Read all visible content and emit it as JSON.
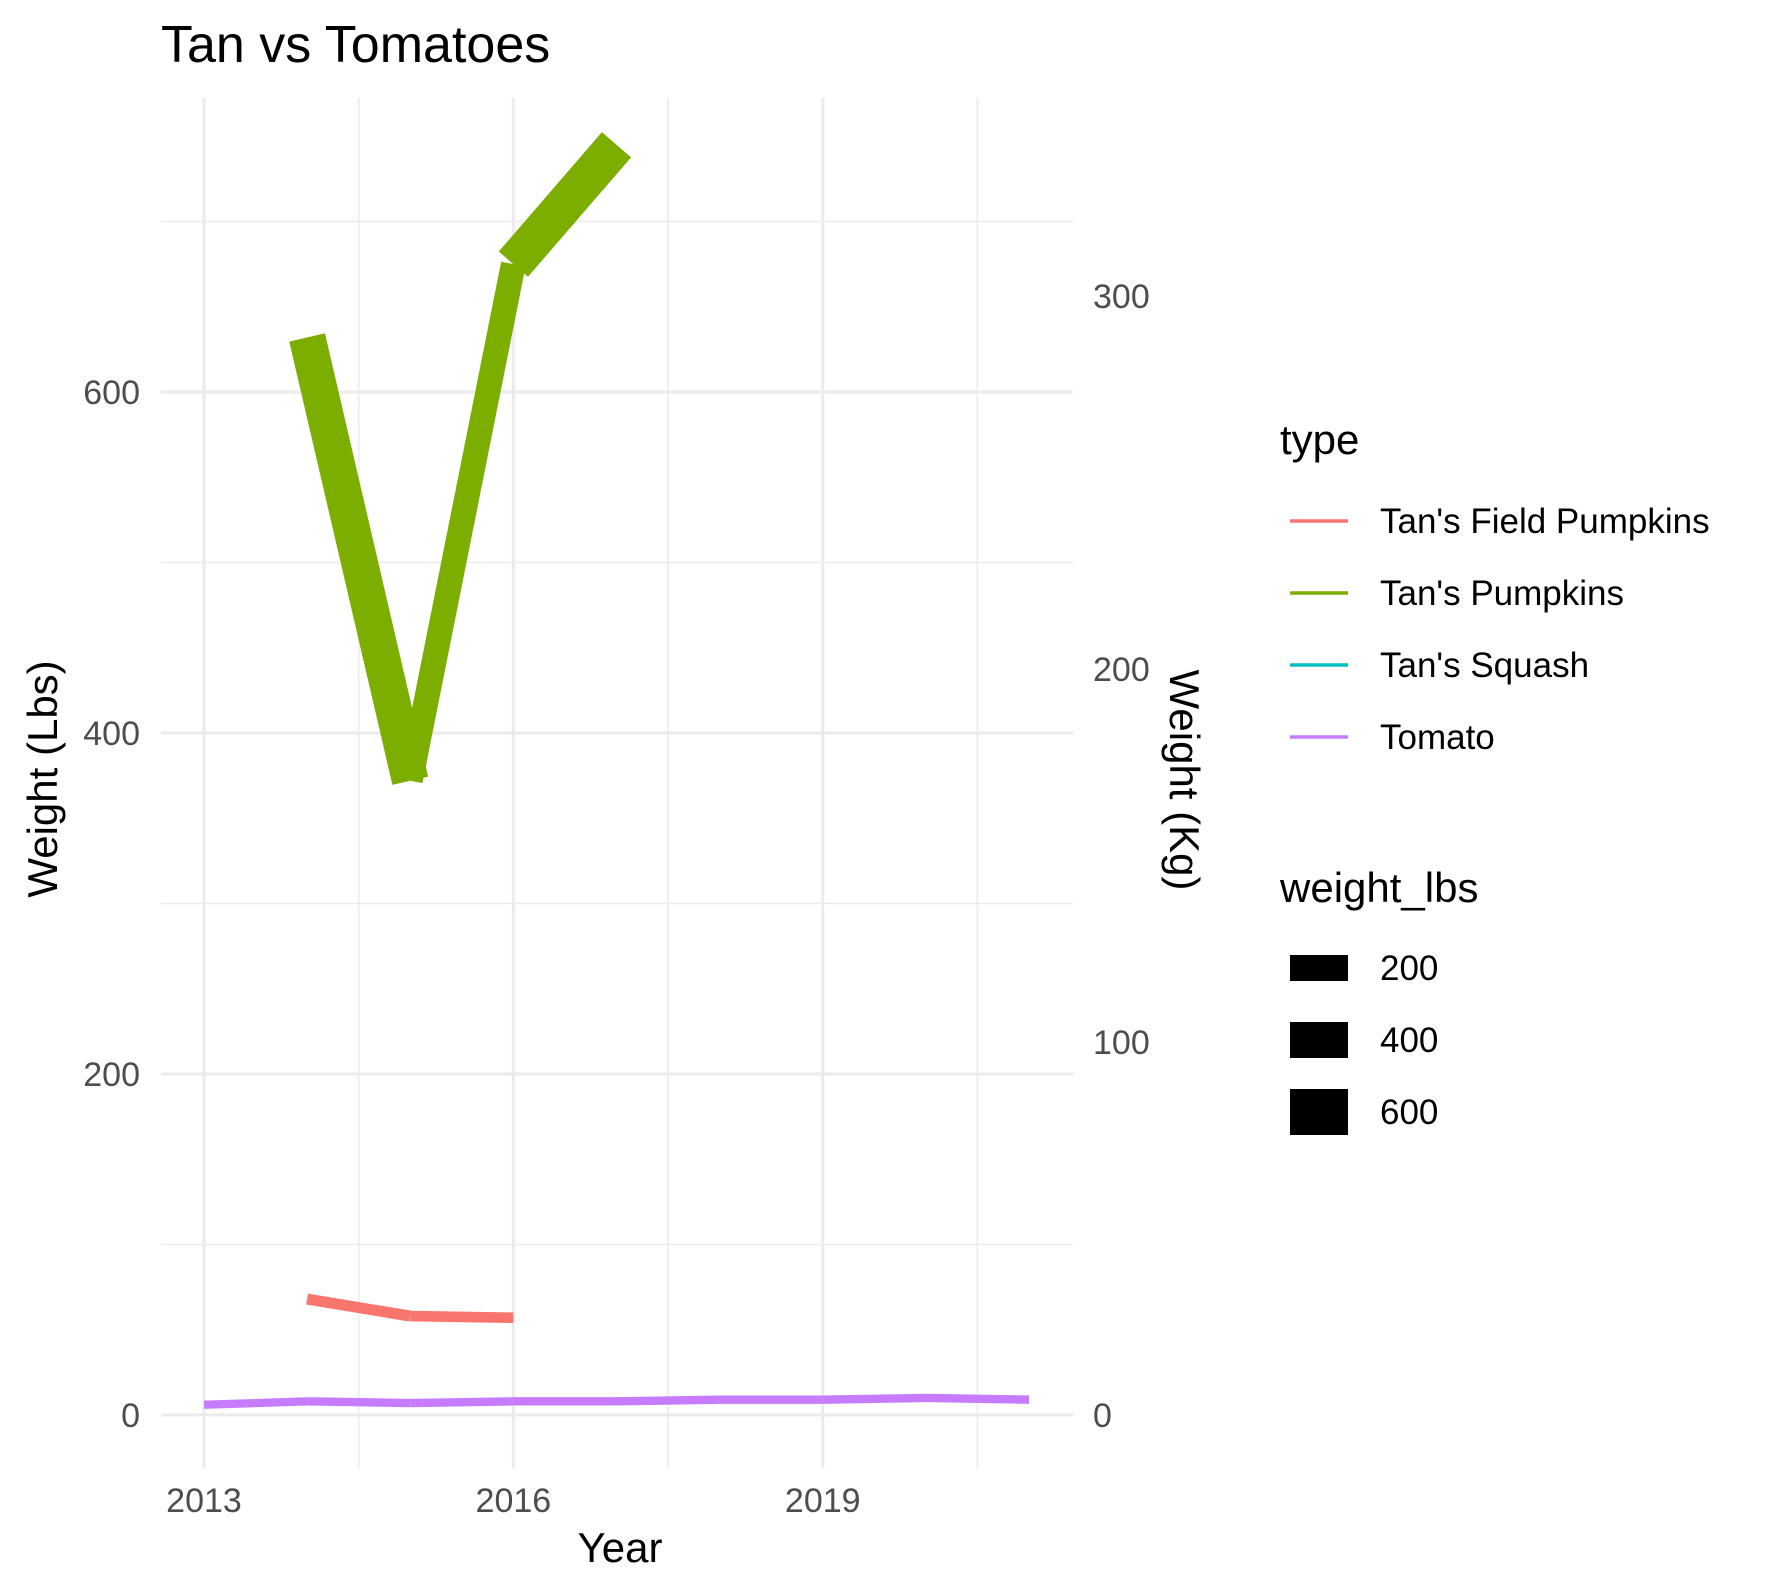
{
  "chart_data": {
    "type": "line",
    "title": "Tan vs Tomatoes",
    "xlabel": "Year",
    "ylabel": "Weight (Lbs)",
    "y2label": "Weight (Kg)",
    "xlim": [
      2013,
      2021
    ],
    "ylim": [
      0,
      740
    ],
    "y2lim": [
      0,
      335.7
    ],
    "x_ticks": [
      2013,
      2016,
      2019
    ],
    "x_tick_labels": [
      "2013",
      "2016",
      "2019"
    ],
    "x_minor_ticks": [
      2014.5,
      2017.5,
      2020.5
    ],
    "y_ticks": [
      0,
      200,
      400,
      600
    ],
    "y_tick_labels": [
      "0",
      "200",
      "400",
      "600"
    ],
    "y_minor_ticks": [
      100,
      300,
      500,
      700
    ],
    "y2_ticks": [
      0,
      100,
      200,
      300
    ],
    "y2_tick_labels": [
      "0",
      "100",
      "200",
      "300"
    ],
    "grid": true,
    "series": [
      {
        "name": "Tan's Field Pumpkins",
        "color": "#f8766d",
        "x": [
          2014,
          2015,
          2016
        ],
        "y": [
          68,
          58,
          57
        ]
      },
      {
        "name": "Tan's Pumpkins",
        "color": "#7cae00",
        "x": [
          2014,
          2015,
          2016,
          2017
        ],
        "y": [
          632,
          372,
          675,
          745
        ]
      },
      {
        "name": "Tan's Squash",
        "color": "#00bfc4",
        "x": [],
        "y": []
      },
      {
        "name": "Tomato",
        "color": "#c77cff",
        "x": [
          2013,
          2014,
          2015,
          2016,
          2017,
          2018,
          2019,
          2020,
          2021
        ],
        "y": [
          6,
          8,
          7,
          8,
          8,
          9,
          9,
          10,
          9
        ]
      }
    ],
    "legend": {
      "placement": "right",
      "color_title": "type",
      "color_items": [
        "Tan's Field Pumpkins",
        "Tan's Pumpkins",
        "Tan's Squash",
        "Tomato"
      ],
      "size_title": "weight_lbs",
      "size_items": [
        "200",
        "400",
        "600"
      ]
    }
  }
}
